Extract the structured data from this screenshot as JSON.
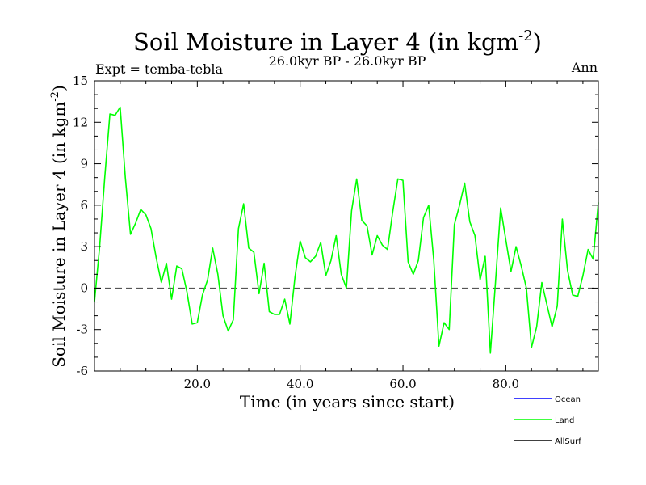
{
  "chart_data": {
    "type": "line",
    "title_main": "Soil Moisture in Layer 4 (in kgm",
    "title_sup": "-2",
    "title_close": ")",
    "subtitle": "26.0kyr BP - 26.0kyr BP",
    "left_label": "Expt = temba-tebla",
    "right_label": "Ann",
    "xlabel": "Time (in years since start)",
    "ylabel_main": "Soil Moisture in Layer 4 (in kgm",
    "ylabel_sup": "-2",
    "ylabel_close": ")",
    "xlim": [
      0,
      98
    ],
    "ylim": [
      -6,
      15
    ],
    "x_ticks": [
      20,
      40,
      60,
      80
    ],
    "x_tick_labels": [
      "20.0",
      "40.0",
      "60.0",
      "80.0"
    ],
    "y_ticks": [
      -6,
      -3,
      0,
      3,
      6,
      9,
      12,
      15
    ],
    "y_tick_labels": [
      "-6",
      "-3",
      "0",
      "3",
      "6",
      "9",
      "12",
      "15"
    ],
    "reference_line": 0,
    "legend": [
      {
        "name": "Ocean",
        "color": "#0000ff"
      },
      {
        "name": "Land",
        "color": "#00ff00"
      },
      {
        "name": "AllSurf",
        "color": "#000000"
      }
    ],
    "series": [
      {
        "name": "Land",
        "color": "#00ff00",
        "x": [
          0,
          1,
          2,
          3,
          4,
          5,
          6,
          7,
          8,
          9,
          10,
          11,
          12,
          13,
          14,
          15,
          16,
          17,
          18,
          19,
          20,
          21,
          22,
          23,
          24,
          25,
          26,
          27,
          28,
          29,
          30,
          31,
          32,
          33,
          34,
          35,
          36,
          37,
          38,
          39,
          40,
          41,
          42,
          43,
          44,
          45,
          46,
          47,
          48,
          49,
          50,
          51,
          52,
          53,
          54,
          55,
          56,
          57,
          58,
          59,
          60,
          61,
          62,
          63,
          64,
          65,
          66,
          67,
          68,
          69,
          70,
          71,
          72,
          73,
          74,
          75,
          76,
          77,
          78,
          79,
          80,
          81,
          82,
          83,
          84,
          85,
          86,
          87,
          88,
          89,
          90,
          91,
          92,
          93,
          94,
          95,
          96,
          97,
          98
        ],
        "values": [
          -1.0,
          3.0,
          8.0,
          12.6,
          12.5,
          13.1,
          8.0,
          3.9,
          4.7,
          5.7,
          5.3,
          4.3,
          2.2,
          0.4,
          1.8,
          -0.8,
          1.6,
          1.4,
          -0.3,
          -2.6,
          -2.5,
          -0.5,
          0.6,
          2.9,
          1.0,
          -2.0,
          -3.1,
          -2.3,
          4.3,
          6.1,
          2.9,
          2.6,
          -0.4,
          1.8,
          -1.7,
          -1.9,
          -1.9,
          -0.8,
          -2.6,
          0.8,
          3.4,
          2.2,
          1.9,
          2.3,
          3.3,
          0.9,
          2.0,
          3.8,
          1.0,
          0.0,
          5.6,
          7.9,
          4.9,
          4.5,
          2.4,
          3.8,
          3.1,
          2.8,
          5.5,
          7.9,
          7.8,
          1.9,
          1.0,
          2.0,
          5.1,
          6.0,
          2.0,
          -4.2,
          -2.5,
          -3.0,
          4.6,
          6.0,
          7.6,
          4.8,
          3.8,
          0.6,
          2.3,
          -4.7,
          0.5,
          5.8,
          3.5,
          1.2,
          3.0,
          1.6,
          0.0,
          -4.3,
          -2.8,
          0.4,
          -1.2,
          -2.8,
          -1.3,
          5.0,
          1.3,
          -0.5,
          -0.6,
          0.9,
          2.8,
          2.1,
          6.2
        ]
      }
    ]
  }
}
